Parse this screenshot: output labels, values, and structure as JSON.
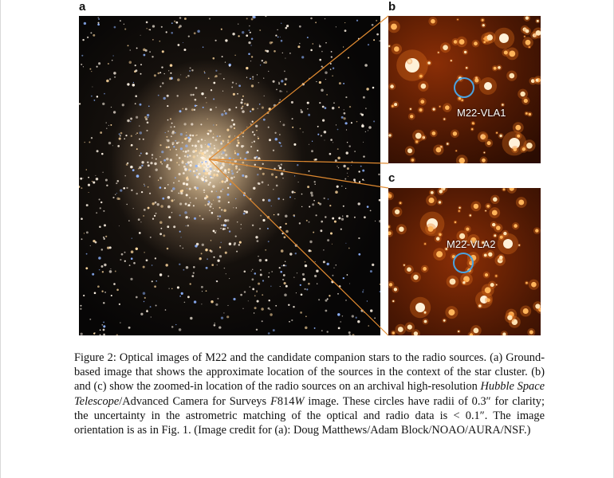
{
  "figure": {
    "panel_labels": {
      "a": "a",
      "b": "b",
      "c": "c"
    },
    "source_labels": {
      "b": "M22-VLA1",
      "c": "M22-VLA2"
    },
    "colors": {
      "circle": "#4aa3e0",
      "zoom_lines": "#e08a30",
      "false_color": "#e0701a"
    }
  },
  "caption": {
    "part1": "Figure 2: Optical images of M22 and the candidate companion stars to the radio sources. (a) Ground-based image that shows the approximate location of the sources in the context of the star cluster. (b) and (c) show the zoomed-in location of the radio sources on an archival high-resolution ",
    "italic1": "Hubble Space Telescope",
    "part2": "/Advanced Camera for Surveys ",
    "italic2": "F",
    "part3": "814",
    "italic3": "W",
    "part4": " image. These circles have radii of 0.3″ for clarity; the uncertainty in the astrometric matching of the optical and radio data is < 0.1″. The image orientation is as in Fig. 1. (Image credit for (a): Doug Matthews/Adam Block/NOAO/AURA/NSF.)"
  }
}
